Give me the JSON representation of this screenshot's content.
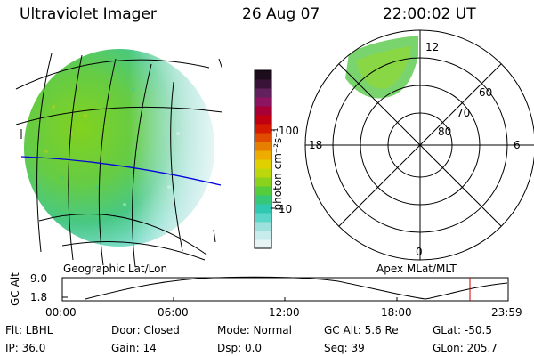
{
  "header": {
    "instrument": "Ultraviolet Imager",
    "date": "26 Aug 07",
    "time": "22:00:02 UT"
  },
  "left_panel": {
    "caption": "Geographic Lat/Lon"
  },
  "right_panel": {
    "caption": "Apex MLat/MLT",
    "mlt_labels": {
      "top": "12",
      "left": "18",
      "right": "6",
      "bottom": "0"
    },
    "mlat_labels": [
      "60",
      "70",
      "80"
    ]
  },
  "colorbar": {
    "unit_label": "photon cm⁻²s⁻¹",
    "ticks": [
      "100",
      "10"
    ],
    "colors": [
      "#e8f4f4",
      "#c8ecec",
      "#9ee0dc",
      "#5cd6c8",
      "#30c8b0",
      "#36c878",
      "#54cc3c",
      "#8ad21e",
      "#bcd80c",
      "#e0d000",
      "#eeac00",
      "#e67e00",
      "#e04c00",
      "#d41a00",
      "#c00010",
      "#a80034",
      "#8c1460",
      "#62205c",
      "#3a1438",
      "#1c0c1c"
    ]
  },
  "altitude_plot": {
    "ylabel": "GC Alt",
    "y_ticks": [
      "9.0",
      "1.8"
    ],
    "x_ticks": [
      "00:00",
      "06:00",
      "12:00",
      "18:00",
      "23:59"
    ],
    "marker_color": "#cc0000"
  },
  "info": {
    "filter": "Flt: LBHL",
    "door": "Door: Closed",
    "mode": "Mode: Normal",
    "gc_alt": "GC Alt: 5.6 Re",
    "glat": "GLat: -50.5",
    "ip": "IP: 36.0",
    "gain": "Gain: 14",
    "dsp": "Dsp:    0.0",
    "seq": "Seq: 39",
    "glon": "GLon: 205.7"
  }
}
